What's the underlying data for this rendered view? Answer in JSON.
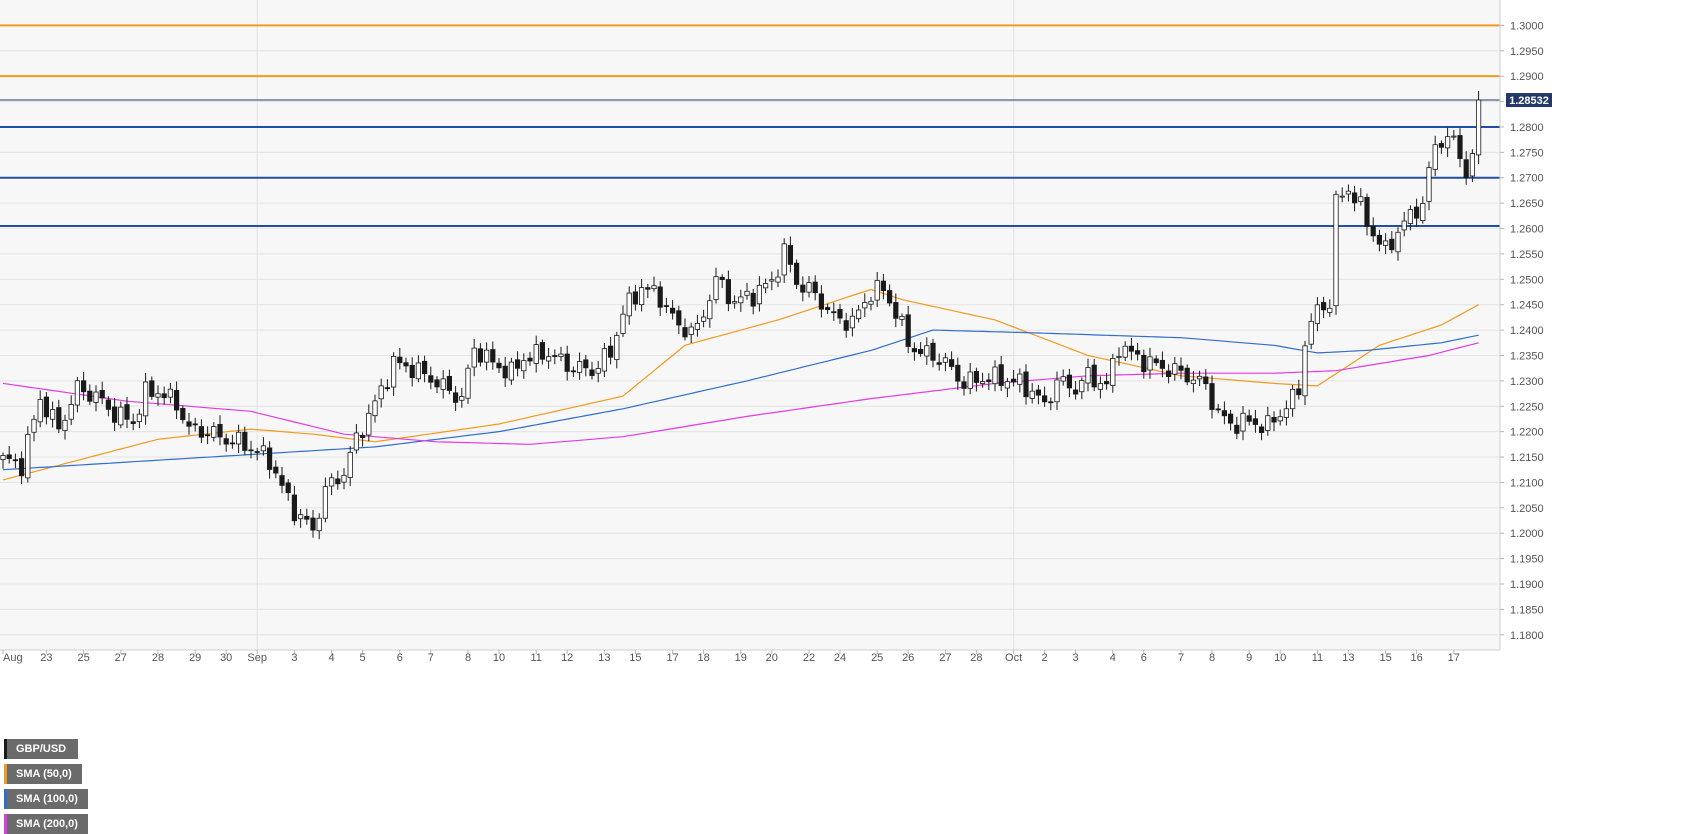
{
  "chart_data": {
    "type": "candlestick",
    "symbol": "GBP/USD",
    "last_price_label": "1.28532",
    "legend": [
      {
        "label": "GBP/USD",
        "color": "#1a1a1a"
      },
      {
        "label": "SMA (50,0)",
        "color": "#f29a1e"
      },
      {
        "label": "SMA (100,0)",
        "color": "#2e6fc9"
      },
      {
        "label": "SMA (200,0)",
        "color": "#e33be3"
      }
    ],
    "ylim": [
      1.177,
      1.305
    ],
    "y_ticks": [
      1.3,
      1.295,
      1.29,
      1.285,
      1.28,
      1.275,
      1.27,
      1.265,
      1.26,
      1.255,
      1.25,
      1.245,
      1.24,
      1.235,
      1.23,
      1.225,
      1.22,
      1.215,
      1.21,
      1.205,
      1.2,
      1.195,
      1.19,
      1.185,
      1.18
    ],
    "y_tick_labels": [
      "1.3000",
      "1.2950",
      "1.2900",
      "1.2850",
      "1.2800",
      "1.2750",
      "1.2700",
      "1.2650",
      "1.2600",
      "1.2550",
      "1.2500",
      "1.2450",
      "1.2400",
      "1.2350",
      "1.2300",
      "1.2250",
      "1.2200",
      "1.2150",
      "1.2100",
      "1.2050",
      "1.2000",
      "1.1950",
      "1.1900",
      "1.1850",
      "1.1800"
    ],
    "x_ticks": [
      {
        "label": "Aug",
        "index": 0
      },
      {
        "label": "23",
        "index": 7
      },
      {
        "label": "25",
        "index": 13
      },
      {
        "label": "27",
        "index": 19
      },
      {
        "label": "28",
        "index": 25
      },
      {
        "label": "29",
        "index": 31
      },
      {
        "label": "30",
        "index": 36
      },
      {
        "label": "Sep",
        "index": 41
      },
      {
        "label": "3",
        "index": 47
      },
      {
        "label": "4",
        "index": 53
      },
      {
        "label": "5",
        "index": 58
      },
      {
        "label": "6",
        "index": 64
      },
      {
        "label": "7",
        "index": 69
      },
      {
        "label": "8",
        "index": 75
      },
      {
        "label": "10",
        "index": 80
      },
      {
        "label": "11",
        "index": 86
      },
      {
        "label": "12",
        "index": 91
      },
      {
        "label": "13",
        "index": 97
      },
      {
        "label": "15",
        "index": 102
      },
      {
        "label": "17",
        "index": 108
      },
      {
        "label": "18",
        "index": 113
      },
      {
        "label": "19",
        "index": 119
      },
      {
        "label": "20",
        "index": 124
      },
      {
        "label": "22",
        "index": 130
      },
      {
        "label": "24",
        "index": 135
      },
      {
        "label": "25",
        "index": 141
      },
      {
        "label": "26",
        "index": 146
      },
      {
        "label": "27",
        "index": 152
      },
      {
        "label": "28",
        "index": 157
      },
      {
        "label": "Oct",
        "index": 163
      },
      {
        "label": "2",
        "index": 168
      },
      {
        "label": "3",
        "index": 173
      },
      {
        "label": "4",
        "index": 179
      },
      {
        "label": "6",
        "index": 184
      },
      {
        "label": "7",
        "index": 190
      },
      {
        "label": "8",
        "index": 195
      },
      {
        "label": "9",
        "index": 201
      },
      {
        "label": "10",
        "index": 206
      },
      {
        "label": "11",
        "index": 212
      },
      {
        "label": "13",
        "index": 217
      },
      {
        "label": "15",
        "index": 223
      },
      {
        "label": "16",
        "index": 228
      },
      {
        "label": "17",
        "index": 234
      }
    ],
    "horizontal_levels": [
      {
        "value": 1.3,
        "color": "#f29a1e"
      },
      {
        "value": 1.29,
        "color": "#f29a1e"
      },
      {
        "value": 1.2853,
        "color": "#22386a"
      },
      {
        "value": 1.28,
        "color": "#1f4fa3"
      },
      {
        "value": 1.27,
        "color": "#1f4fa3"
      },
      {
        "value": 1.2605,
        "color": "#1f4fa3"
      }
    ],
    "price_anchors": [
      [
        0,
        1.2145
      ],
      [
        3,
        1.2135
      ],
      [
        6,
        1.2265
      ],
      [
        9,
        1.2205
      ],
      [
        12,
        1.2285
      ],
      [
        15,
        1.227
      ],
      [
        18,
        1.2235
      ],
      [
        21,
        1.222
      ],
      [
        23,
        1.2275
      ],
      [
        25,
        1.228
      ],
      [
        28,
        1.2255
      ],
      [
        30,
        1.2205
      ],
      [
        33,
        1.22
      ],
      [
        36,
        1.2185
      ],
      [
        39,
        1.2175
      ],
      [
        43,
        1.2145
      ],
      [
        45,
        1.209
      ],
      [
        47,
        1.2045
      ],
      [
        50,
        1.2005
      ],
      [
        52,
        1.2085
      ],
      [
        55,
        1.212
      ],
      [
        57,
        1.2185
      ],
      [
        60,
        1.2255
      ],
      [
        63,
        1.2335
      ],
      [
        66,
        1.2325
      ],
      [
        69,
        1.2305
      ],
      [
        72,
        1.228
      ],
      [
        74,
        1.2265
      ],
      [
        76,
        1.2365
      ],
      [
        79,
        1.2335
      ],
      [
        82,
        1.2315
      ],
      [
        84,
        1.2345
      ],
      [
        88,
        1.2355
      ],
      [
        91,
        1.233
      ],
      [
        95,
        1.232
      ],
      [
        98,
        1.2355
      ],
      [
        100,
        1.2435
      ],
      [
        103,
        1.2485
      ],
      [
        106,
        1.2465
      ],
      [
        109,
        1.2405
      ],
      [
        112,
        1.24
      ],
      [
        115,
        1.25
      ],
      [
        118,
        1.2455
      ],
      [
        121,
        1.247
      ],
      [
        124,
        1.2495
      ],
      [
        126,
        1.2555
      ],
      [
        128,
        1.2495
      ],
      [
        131,
        1.247
      ],
      [
        134,
        1.2425
      ],
      [
        137,
        1.2415
      ],
      [
        140,
        1.2475
      ],
      [
        142,
        1.248
      ],
      [
        144,
        1.2435
      ],
      [
        146,
        1.2375
      ],
      [
        148,
        1.2355
      ],
      [
        150,
        1.235
      ],
      [
        152,
        1.2335
      ],
      [
        155,
        1.2295
      ],
      [
        158,
        1.2305
      ],
      [
        161,
        1.2305
      ],
      [
        164,
        1.2295
      ],
      [
        166,
        1.228
      ],
      [
        168,
        1.225
      ],
      [
        170,
        1.23
      ],
      [
        173,
        1.2285
      ],
      [
        175,
        1.231
      ],
      [
        178,
        1.229
      ],
      [
        180,
        1.237
      ],
      [
        183,
        1.2345
      ],
      [
        186,
        1.233
      ],
      [
        189,
        1.232
      ],
      [
        192,
        1.2305
      ],
      [
        194,
        1.229
      ],
      [
        196,
        1.2235
      ],
      [
        198,
        1.2215
      ],
      [
        201,
        1.222
      ],
      [
        204,
        1.221
      ],
      [
        207,
        1.225
      ],
      [
        209,
        1.228
      ],
      [
        210,
        1.238
      ],
      [
        212,
        1.244
      ],
      [
        214,
        1.2455
      ],
      [
        215,
        1.265
      ],
      [
        217,
        1.268
      ],
      [
        219,
        1.264
      ],
      [
        221,
        1.259
      ],
      [
        223,
        1.2555
      ],
      [
        225,
        1.2595
      ],
      [
        227,
        1.2625
      ],
      [
        229,
        1.265
      ],
      [
        231,
        1.2765
      ],
      [
        233,
        1.278
      ],
      [
        235,
        1.275
      ],
      [
        236,
        1.2705
      ],
      [
        237,
        1.2745
      ],
      [
        238,
        1.2853
      ]
    ],
    "sma50_anchors": [
      [
        0,
        1.2105
      ],
      [
        25,
        1.2185
      ],
      [
        40,
        1.2205
      ],
      [
        50,
        1.2195
      ],
      [
        60,
        1.218
      ],
      [
        80,
        1.2215
      ],
      [
        100,
        1.227
      ],
      [
        110,
        1.237
      ],
      [
        125,
        1.242
      ],
      [
        140,
        1.248
      ],
      [
        145,
        1.246
      ],
      [
        160,
        1.242
      ],
      [
        175,
        1.235
      ],
      [
        190,
        1.231
      ],
      [
        205,
        1.2295
      ],
      [
        212,
        1.229
      ],
      [
        222,
        1.237
      ],
      [
        232,
        1.241
      ],
      [
        238,
        1.245
      ]
    ],
    "sma100_anchors": [
      [
        0,
        1.2125
      ],
      [
        20,
        1.214
      ],
      [
        40,
        1.2155
      ],
      [
        60,
        1.217
      ],
      [
        80,
        1.22
      ],
      [
        100,
        1.2245
      ],
      [
        120,
        1.23
      ],
      [
        140,
        1.236
      ],
      [
        150,
        1.24
      ],
      [
        165,
        1.2395
      ],
      [
        190,
        1.2385
      ],
      [
        205,
        1.237
      ],
      [
        212,
        1.2355
      ],
      [
        220,
        1.236
      ],
      [
        232,
        1.2375
      ],
      [
        238,
        1.239
      ]
    ],
    "sma200_anchors": [
      [
        0,
        1.2295
      ],
      [
        20,
        1.226
      ],
      [
        40,
        1.224
      ],
      [
        55,
        1.2195
      ],
      [
        70,
        1.218
      ],
      [
        85,
        1.2175
      ],
      [
        100,
        1.219
      ],
      [
        120,
        1.223
      ],
      [
        140,
        1.2265
      ],
      [
        160,
        1.2295
      ],
      [
        175,
        1.231
      ],
      [
        190,
        1.2315
      ],
      [
        205,
        1.2315
      ],
      [
        215,
        1.232
      ],
      [
        230,
        1.235
      ],
      [
        238,
        1.2375
      ]
    ],
    "candle_count": 239,
    "grid": true,
    "legend_position": "top-left"
  }
}
